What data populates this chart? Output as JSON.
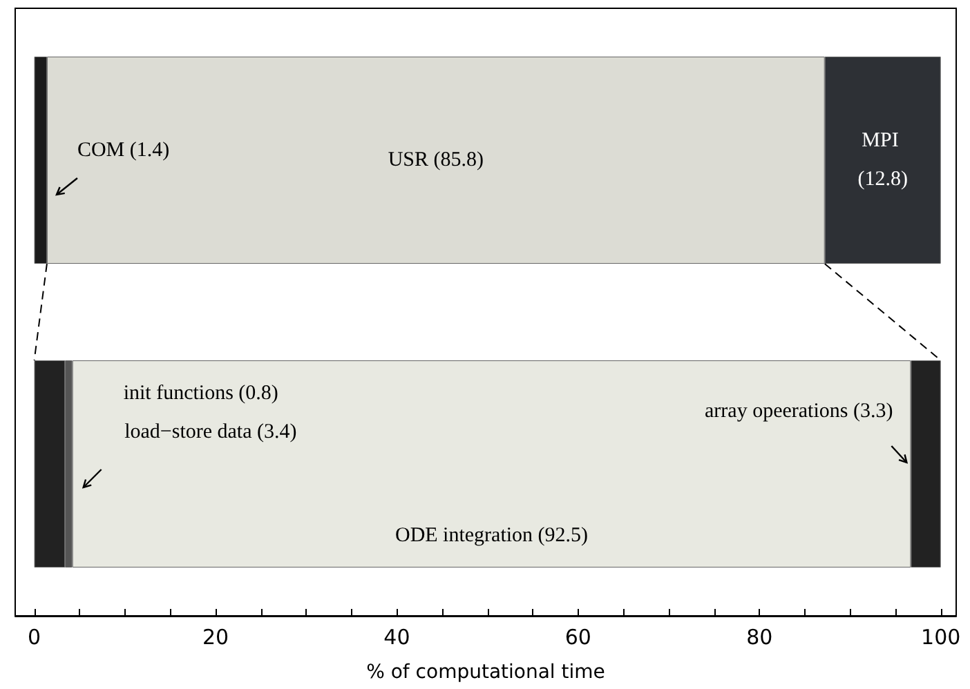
{
  "chart_data": {
    "type": "bar",
    "orientation": "horizontal",
    "stacked": true,
    "categories": [
      null,
      null
    ],
    "xlabel": "% of computational time",
    "xlim": [
      -2.1,
      101.7
    ],
    "xticks": [
      0,
      {
        "value": 5,
        "label": null
      },
      {
        "value": 10,
        "label": null
      },
      {
        "value": 15,
        "label": null
      },
      20,
      {
        "value": 25,
        "label": null
      },
      {
        "value": 30,
        "label": null
      },
      {
        "value": 35,
        "label": null
      },
      40,
      {
        "value": 45,
        "label": null
      },
      {
        "value": 50,
        "label": null
      },
      {
        "value": 55,
        "label": null
      },
      60,
      {
        "value": 65,
        "label": null
      },
      {
        "value": 70,
        "label": null
      },
      {
        "value": 75,
        "label": null
      },
      80,
      {
        "value": 85,
        "label": null
      },
      {
        "value": 90,
        "label": null
      },
      {
        "value": 95,
        "label": null
      },
      100
    ],
    "series": [
      {
        "color": "#1b1b1b",
        "values": [
          1.4,
          null
        ],
        "value_labels": [
          "COM (1.4)",
          null
        ]
      },
      {
        "color": "#dcdcd4",
        "values": [
          85.8,
          null
        ],
        "value_labels": [
          "USR (85.8)",
          null
        ]
      },
      {
        "color": "#2d3035",
        "values": [
          12.8,
          null
        ],
        "value_labels": [
          "MPI (12.8)",
          null
        ]
      },
      {
        "color": "#222222",
        "values": [
          null,
          3.4
        ],
        "value_labels": [
          null,
          "load−store data (3.4)"
        ]
      },
      {
        "color": "#555555",
        "values": [
          null,
          0.8
        ],
        "value_labels": [
          null,
          "init functions (0.8)"
        ]
      },
      {
        "color": "#e8e9e1",
        "values": [
          null,
          92.5
        ],
        "value_labels": [
          null,
          "ODE integration (92.5)"
        ]
      },
      {
        "color": "#222222",
        "values": [
          null,
          3.3
        ],
        "value_labels": [
          null,
          "array opeerations (3.3)"
        ]
      }
    ]
  }
}
